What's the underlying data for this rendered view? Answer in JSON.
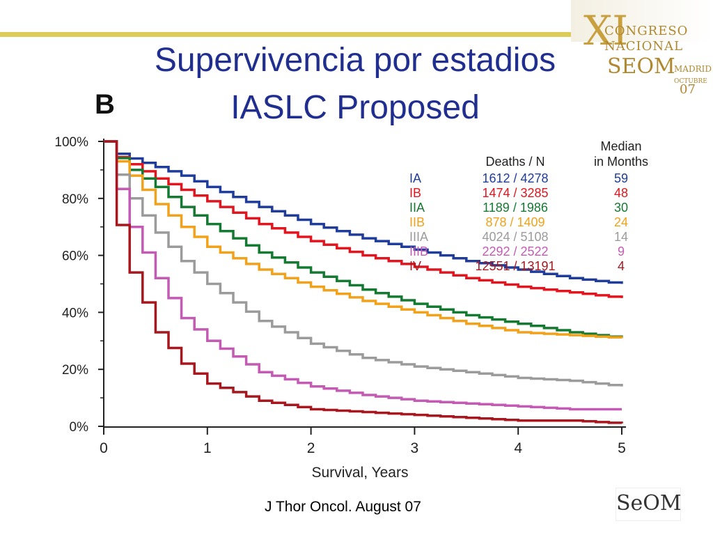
{
  "slide": {
    "title_line1": "Supervivencia por estadios",
    "title_line2": "IASLC Proposed",
    "panel_letter": "B",
    "footer": "J Thor Oncol. August 07",
    "logo_text": "SeOM",
    "congress": {
      "numeral": "XI",
      "line1": "CONGRESO",
      "line2": "NACIONAL",
      "line3": "SEOM",
      "line3b": "MADRID",
      "line4": "OCTUBRE",
      "line5": "07"
    }
  },
  "chart_data": {
    "type": "line",
    "xlabel": "Survival, Years",
    "ylabel": "",
    "xlim": [
      0,
      5
    ],
    "ylim": [
      0,
      100
    ],
    "x_ticks": [
      "0",
      "1",
      "2",
      "3",
      "4",
      "5"
    ],
    "y_ticks": [
      "0%",
      "20%",
      "40%",
      "60%",
      "80%",
      "100%"
    ],
    "legend": {
      "header_deaths": "Deaths / N",
      "header_median_1": "Median",
      "header_median_2": "in Months",
      "position": "top-right"
    },
    "series": [
      {
        "name": "IA",
        "deaths_n": "1612 / 4278",
        "median": "59",
        "color": "#1f3c9a",
        "x": [
          0,
          0.1,
          0.25,
          0.5,
          0.75,
          1,
          1.5,
          2,
          2.5,
          3,
          3.5,
          4,
          4.5,
          5
        ],
        "y": [
          100,
          96,
          94,
          91,
          88,
          84,
          77,
          71,
          66,
          62,
          58,
          55,
          52,
          50
        ]
      },
      {
        "name": "IB",
        "deaths_n": "1474 / 3285",
        "median": "48",
        "color": "#e2151f",
        "x": [
          0,
          0.1,
          0.25,
          0.5,
          0.75,
          1,
          1.5,
          2,
          2.5,
          3,
          3.5,
          4,
          4.5,
          5
        ],
        "y": [
          100,
          95,
          92,
          87,
          83,
          79,
          71,
          65,
          60,
          56,
          52,
          49,
          47,
          45
        ]
      },
      {
        "name": "IIA",
        "deaths_n": "1189 / 1986",
        "median": "30",
        "color": "#147a32",
        "x": [
          0,
          0.1,
          0.25,
          0.5,
          0.75,
          1,
          1.5,
          2,
          2.5,
          3,
          3.5,
          4,
          4.5,
          5
        ],
        "y": [
          100,
          95,
          90,
          84,
          77,
          71,
          61,
          54,
          48,
          43,
          39,
          36,
          33,
          31
        ]
      },
      {
        "name": "IIB",
        "deaths_n": "878 / 1409",
        "median": "24",
        "color": "#f2a21a",
        "x": [
          0,
          0.1,
          0.25,
          0.5,
          0.75,
          1,
          1.5,
          2,
          2.5,
          3,
          3.5,
          4,
          4.5,
          5
        ],
        "y": [
          100,
          94,
          88,
          78,
          70,
          63,
          55,
          49,
          44,
          40,
          36,
          33,
          32,
          31
        ]
      },
      {
        "name": "IIIA",
        "deaths_n": "4024 / 5108",
        "median": "14",
        "color": "#9b9b9b",
        "x": [
          0,
          0.1,
          0.25,
          0.5,
          0.75,
          1,
          1.5,
          2,
          2.5,
          3,
          3.5,
          4,
          4.5,
          5
        ],
        "y": [
          100,
          90,
          80,
          68,
          58,
          50,
          37,
          29,
          24,
          21,
          19,
          17,
          16,
          14
        ]
      },
      {
        "name": "IIIB",
        "deaths_n": "2292 / 2522",
        "median": "9",
        "color": "#c45ab4",
        "x": [
          0,
          0.1,
          0.25,
          0.5,
          0.75,
          1,
          1.5,
          2,
          2.5,
          3,
          3.5,
          4,
          4.5,
          5
        ],
        "y": [
          100,
          86,
          70,
          52,
          38,
          30,
          19,
          14,
          11,
          9,
          8,
          7,
          6,
          6
        ]
      },
      {
        "name": "IV",
        "deaths_n": "12551 / 13191",
        "median": "4",
        "color": "#a8171d",
        "x": [
          0,
          0.1,
          0.25,
          0.5,
          0.75,
          1,
          1.5,
          2,
          2.5,
          3,
          3.5,
          4,
          4.5,
          5
        ],
        "y": [
          100,
          74,
          54,
          33,
          22,
          15,
          9,
          6,
          5,
          4,
          3,
          2,
          2,
          1
        ]
      }
    ]
  }
}
